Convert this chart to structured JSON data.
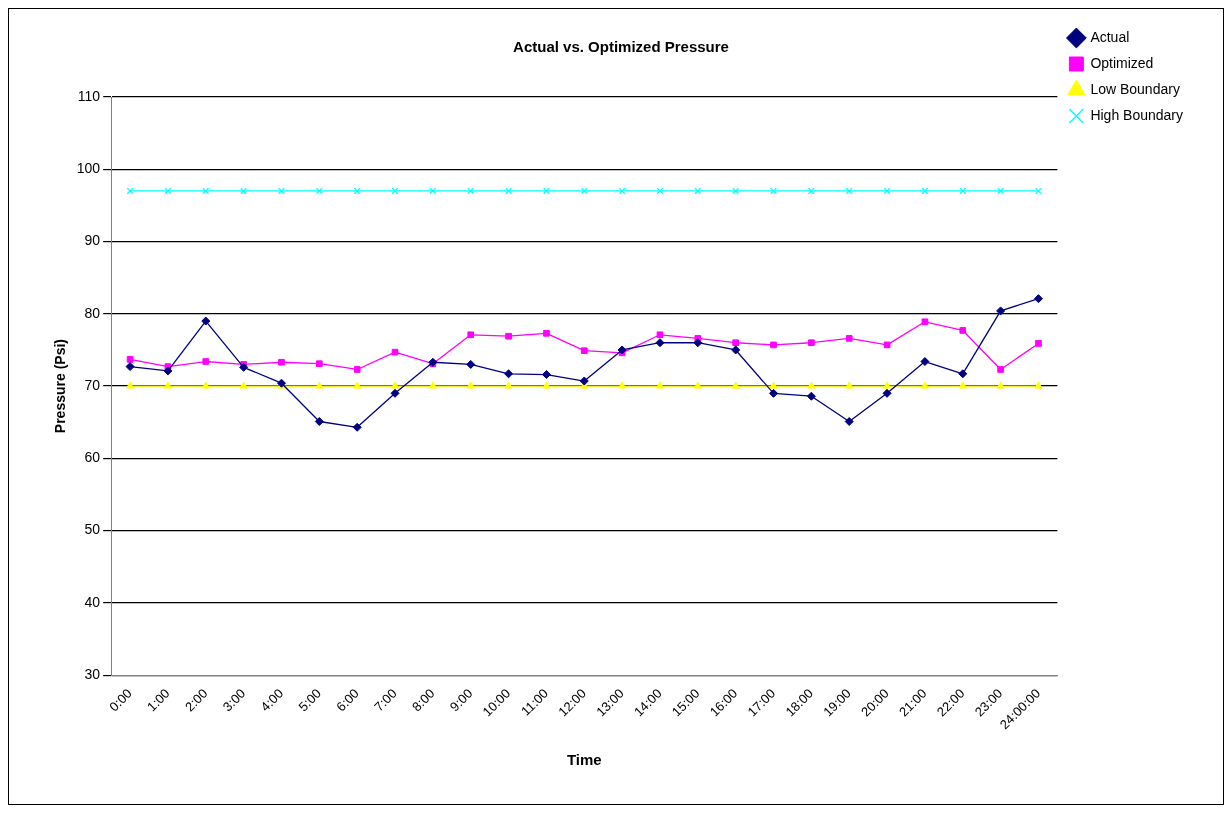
{
  "chart_data": {
    "type": "line",
    "title": "Actual vs. Optimized Pressure",
    "xlabel": "Time",
    "ylabel": "Pressure (Psi)",
    "categories": [
      "0:00",
      "1:00",
      "2:00",
      "3:00",
      "4:00",
      "5:00",
      "6:00",
      "7:00",
      "8:00",
      "9:00",
      "10:00",
      "11:00",
      "12:00",
      "13:00",
      "14:00",
      "15:00",
      "16:00",
      "17:00",
      "18:00",
      "19:00",
      "20:00",
      "21:00",
      "22:00",
      "23:00",
      "24:00:00"
    ],
    "series": [
      {
        "name": "Actual",
        "color": "#000080",
        "marker": "diamond",
        "values": [
          72.7,
          72.1,
          79,
          72.6,
          70.4,
          65.1,
          64.3,
          69,
          73.3,
          73,
          71.7,
          71.6,
          70.7,
          75,
          76,
          76,
          75,
          69,
          68.6,
          65.1,
          69,
          73.4,
          71.7,
          80.4,
          82.1
        ]
      },
      {
        "name": "Optimized",
        "color": "#ff00ff",
        "marker": "square",
        "values": [
          73.7,
          72.7,
          73.4,
          73,
          73.3,
          73.1,
          72.3,
          74.7,
          73.1,
          77.1,
          76.9,
          77.3,
          74.9,
          74.6,
          77.1,
          76.6,
          76,
          75.7,
          76,
          76.6,
          75.7,
          78.9,
          77.7,
          72.3,
          75.9
        ]
      },
      {
        "name": "Low Boundary",
        "color": "#ffff00",
        "marker": "triangle",
        "values": [
          70,
          70,
          70,
          70,
          70,
          70,
          70,
          70,
          70,
          70,
          70,
          70,
          70,
          70,
          70,
          70,
          70,
          70,
          70,
          70,
          70,
          70,
          70,
          70,
          70
        ]
      },
      {
        "name": "High Boundary",
        "color": "#00ffff",
        "marker": "cross",
        "values": [
          97,
          97,
          97,
          97,
          97,
          97,
          97,
          97,
          97,
          97,
          97,
          97,
          97,
          97,
          97,
          97,
          97,
          97,
          97,
          97,
          97,
          97,
          97,
          97,
          97
        ]
      }
    ],
    "ylim": [
      30,
      110
    ],
    "yticks": [
      30,
      40,
      50,
      60,
      70,
      80,
      90,
      100,
      110
    ],
    "grid": "y",
    "legend": "right"
  }
}
